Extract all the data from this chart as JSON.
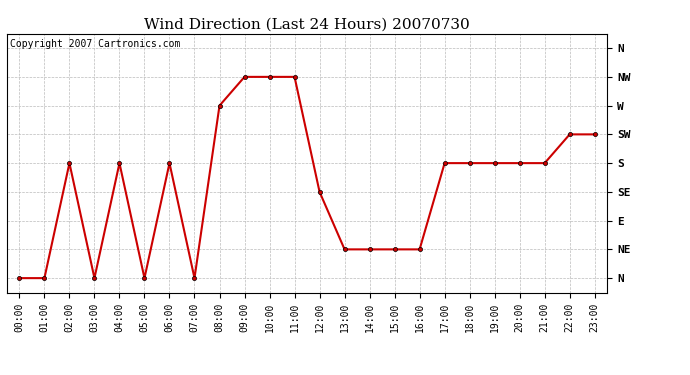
{
  "title": "Wind Direction (Last 24 Hours) 20070730",
  "copyright_text": "Copyright 2007 Cartronics.com",
  "x_labels": [
    "00:00",
    "01:00",
    "02:00",
    "03:00",
    "04:00",
    "05:00",
    "06:00",
    "07:00",
    "08:00",
    "09:00",
    "10:00",
    "11:00",
    "12:00",
    "13:00",
    "14:00",
    "15:00",
    "16:00",
    "17:00",
    "18:00",
    "19:00",
    "20:00",
    "21:00",
    "22:00",
    "23:00"
  ],
  "y_labels": [
    "N",
    "NE",
    "E",
    "SE",
    "S",
    "SW",
    "W",
    "NW",
    "N"
  ],
  "y_values": [
    0,
    1,
    2,
    3,
    4,
    5,
    6,
    7,
    8
  ],
  "data_points": [
    0,
    0,
    4,
    0,
    4,
    0,
    4,
    0,
    6,
    7,
    7,
    7,
    3,
    1,
    1,
    1,
    1,
    4,
    4,
    4,
    4,
    4,
    5,
    5
  ],
  "line_color": "#cc0000",
  "marker_color": "#cc0000",
  "marker_style": "o",
  "marker_size": 3,
  "line_width": 1.5,
  "bg_color": "#ffffff",
  "grid_color": "#bbbbbb",
  "title_fontsize": 11,
  "copyright_fontsize": 7,
  "tick_fontsize": 7,
  "ytick_fontsize": 8
}
